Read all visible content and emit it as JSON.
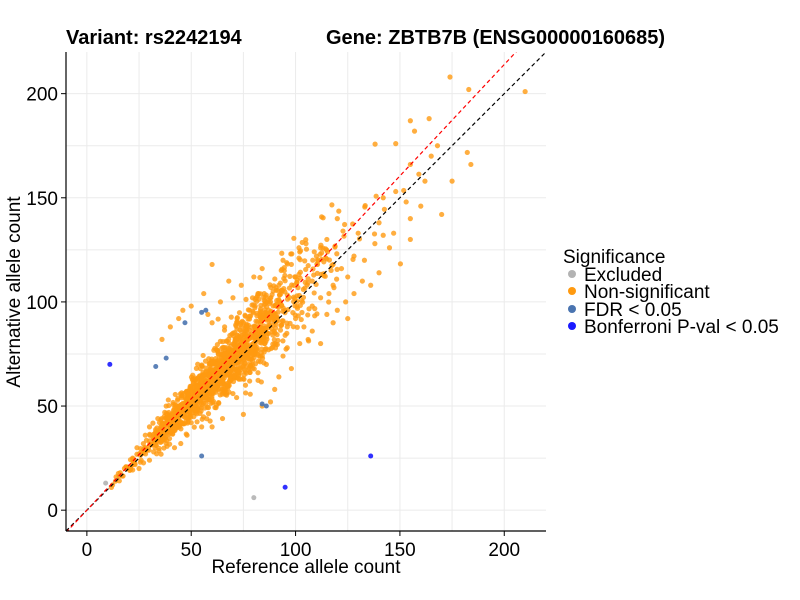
{
  "header": {
    "variant_title": "Variant: rs2242194",
    "gene_title": "Gene: ZBTB7B (ENSG00000160685)"
  },
  "chart_data": {
    "type": "scatter",
    "xlabel": "Reference allele count",
    "ylabel": "Alternative allele count",
    "xlim": [
      -10,
      220
    ],
    "ylim": [
      -10,
      220
    ],
    "x_ticks": [
      0,
      50,
      100,
      150,
      200
    ],
    "y_ticks": [
      0,
      50,
      100,
      150,
      200
    ],
    "grid": true,
    "legend": {
      "title": "Significance",
      "placement": "right",
      "entries": [
        {
          "label": "Excluded",
          "color": "#b3b3b3"
        },
        {
          "label": "Non-significant",
          "color": "#ff9a10"
        },
        {
          "label": "FDR < 0.05",
          "color": "#4a74b0"
        },
        {
          "label": "Bonferroni P-val < 0.05",
          "color": "#1a1aff"
        }
      ]
    },
    "reference_lines": [
      {
        "name": "identity",
        "slope": 1.0,
        "intercept": 0,
        "color": "#000000",
        "dash": true
      },
      {
        "name": "fit",
        "slope": 1.07,
        "intercept": 0,
        "color": "#ff0000",
        "dash": true
      }
    ],
    "cloud": {
      "series": "Non-significant",
      "n_points": 1500,
      "x_center": 62,
      "x_spread": 18,
      "ratio": 1.05,
      "noise": 0.1
    },
    "series": [
      {
        "name": "Non-significant",
        "color": "#ff9a10",
        "points": [
          [
            174,
            208
          ],
          [
            183,
            202
          ],
          [
            210,
            201
          ],
          [
            164,
            188
          ],
          [
            155,
            187
          ],
          [
            157,
            182
          ],
          [
            148,
            176
          ],
          [
            165,
            170
          ],
          [
            184,
            166
          ],
          [
            155,
            166
          ],
          [
            168,
            175
          ],
          [
            175,
            158
          ],
          [
            162,
            158
          ],
          [
            142,
            150
          ],
          [
            148,
            153
          ],
          [
            170,
            142
          ],
          [
            160,
            146
          ],
          [
            153,
            148
          ],
          [
            140,
            138
          ],
          [
            130,
            133
          ],
          [
            142,
            132
          ],
          [
            147,
            133
          ],
          [
            155,
            140
          ],
          [
            138,
            128
          ],
          [
            145,
            126
          ],
          [
            155,
            130
          ],
          [
            128,
            122
          ],
          [
            118,
            118
          ],
          [
            122,
            116
          ],
          [
            133,
            120
          ],
          [
            136,
            108
          ],
          [
            128,
            104
          ],
          [
            140,
            114
          ],
          [
            118,
            108
          ],
          [
            125,
            112
          ],
          [
            108,
            110
          ],
          [
            112,
            102
          ],
          [
            115,
            94
          ],
          [
            125,
            92
          ],
          [
            108,
            86
          ],
          [
            118,
            90
          ],
          [
            95,
            84
          ],
          [
            90,
            80
          ],
          [
            85,
            76
          ],
          [
            102,
            80
          ],
          [
            112,
            80
          ],
          [
            98,
            68
          ],
          [
            92,
            64
          ],
          [
            88,
            52
          ],
          [
            78,
            62
          ],
          [
            84,
            50
          ],
          [
            90,
            58
          ],
          [
            75,
            46
          ],
          [
            70,
            56
          ],
          [
            65,
            44
          ],
          [
            60,
            40
          ],
          [
            55,
            40
          ],
          [
            50,
            42
          ],
          [
            48,
            36
          ],
          [
            42,
            30
          ],
          [
            38,
            32
          ],
          [
            32,
            28
          ],
          [
            28,
            30
          ],
          [
            26,
            24
          ],
          [
            22,
            22
          ],
          [
            18,
            20
          ],
          [
            16,
            18
          ],
          [
            14,
            16
          ],
          [
            25,
            20
          ],
          [
            30,
            24
          ],
          [
            45,
            32
          ],
          [
            52,
            48
          ],
          [
            56,
            104
          ],
          [
            46,
            96
          ],
          [
            40,
            88
          ],
          [
            36,
            82
          ],
          [
            50,
            98
          ],
          [
            44,
            92
          ],
          [
            120,
            140
          ],
          [
            115,
            130
          ],
          [
            105,
            128
          ],
          [
            110,
            122
          ],
          [
            98,
            118
          ],
          [
            100,
            112
          ],
          [
            92,
            108
          ],
          [
            88,
            100
          ],
          [
            82,
            104
          ],
          [
            78,
            96
          ],
          [
            72,
            92
          ],
          [
            66,
            88
          ],
          [
            60,
            90
          ],
          [
            58,
            94
          ],
          [
            64,
            100
          ],
          [
            70,
            102
          ],
          [
            74,
            108
          ],
          [
            80,
            112
          ],
          [
            68,
            110
          ],
          [
            84,
            116
          ],
          [
            94,
            120
          ],
          [
            102,
            124
          ],
          [
            112,
            126
          ],
          [
            60,
            118
          ],
          [
            34,
            44
          ],
          [
            38,
            50
          ],
          [
            30,
            40
          ],
          [
            28,
            36
          ],
          [
            36,
            38
          ],
          [
            24,
            30
          ],
          [
            108,
            98
          ],
          [
            116,
            104
          ],
          [
            124,
            100
          ],
          [
            132,
            110
          ],
          [
            120,
            96
          ],
          [
            100,
            92
          ],
          [
            76,
            60
          ],
          [
            82,
            66
          ],
          [
            86,
            70
          ],
          [
            94,
            74
          ],
          [
            96,
            78
          ],
          [
            104,
            88
          ]
        ]
      },
      {
        "name": "Excluded",
        "color": "#b3b3b3",
        "points": [
          [
            80,
            6
          ],
          [
            9,
            13
          ]
        ]
      },
      {
        "name": "FDR < 0.05",
        "color": "#4a74b0",
        "points": [
          [
            38,
            73
          ],
          [
            33,
            69
          ],
          [
            57,
            96
          ],
          [
            55,
            95
          ],
          [
            47,
            90
          ],
          [
            55,
            26
          ],
          [
            86,
            50
          ],
          [
            84,
            51
          ]
        ]
      },
      {
        "name": "Bonferroni P-val < 0.05",
        "color": "#1a1aff",
        "points": [
          [
            11,
            70
          ],
          [
            136,
            26
          ],
          [
            95,
            11
          ]
        ]
      }
    ]
  }
}
